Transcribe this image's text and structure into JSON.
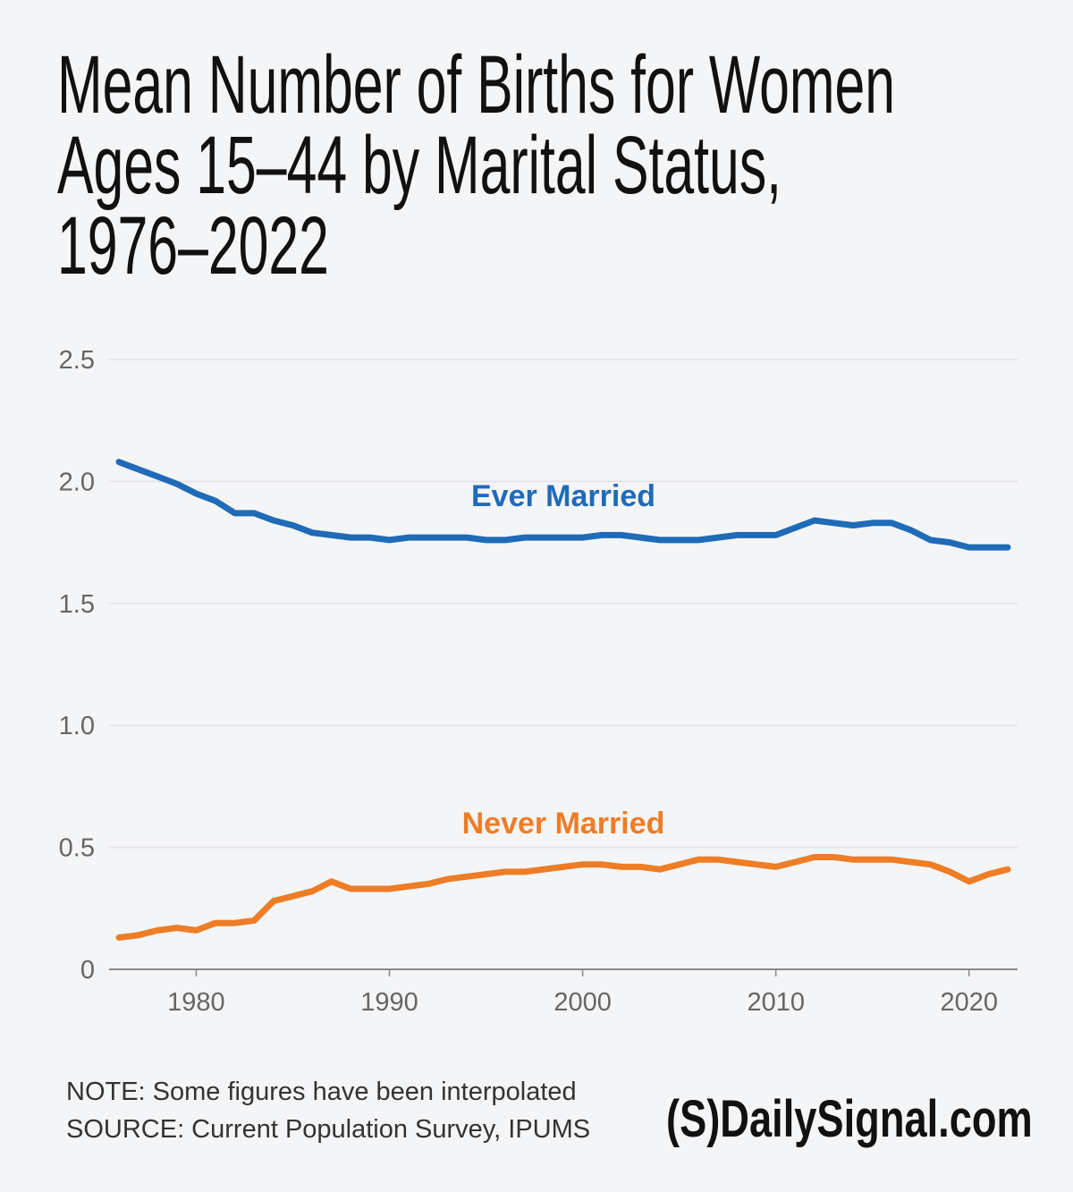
{
  "title_lines": [
    "Mean Number of Births for Women",
    "Ages 15–44 by Marital Status,",
    "1976–2022"
  ],
  "note": "NOTE: Some figures have been interpolated",
  "source": "SOURCE: Current Population Survey, IPUMS",
  "logo": "(S)DailySignal.com",
  "chart_data": {
    "type": "line",
    "title": "Mean Number of Births for Women Ages 15–44 by Marital Status, 1976–2022",
    "xlim": [
      1976,
      2022
    ],
    "ylim": [
      0,
      2.5
    ],
    "grid": true,
    "x_ticks": [
      "1980",
      "1990",
      "2000",
      "2010",
      "2020"
    ],
    "y_ticks": [
      "0",
      "0.5",
      "1.0",
      "1.5",
      "2.0",
      "2.5"
    ],
    "x": [
      1976,
      1977,
      1978,
      1979,
      1980,
      1981,
      1982,
      1983,
      1984,
      1985,
      1986,
      1987,
      1988,
      1989,
      1990,
      1991,
      1992,
      1993,
      1994,
      1995,
      1996,
      1997,
      1998,
      1999,
      2000,
      2001,
      2002,
      2003,
      2004,
      2005,
      2006,
      2007,
      2008,
      2009,
      2010,
      2011,
      2012,
      2013,
      2014,
      2015,
      2016,
      2017,
      2018,
      2019,
      2020,
      2021,
      2022
    ],
    "series": [
      {
        "name": "Ever Married",
        "color": "#1f6bb8",
        "values": [
          2.08,
          2.05,
          2.02,
          1.99,
          1.95,
          1.92,
          1.87,
          1.87,
          1.84,
          1.82,
          1.79,
          1.78,
          1.77,
          1.77,
          1.76,
          1.77,
          1.77,
          1.77,
          1.77,
          1.76,
          1.76,
          1.77,
          1.77,
          1.77,
          1.77,
          1.78,
          1.78,
          1.77,
          1.76,
          1.76,
          1.76,
          1.77,
          1.78,
          1.78,
          1.78,
          1.81,
          1.84,
          1.83,
          1.82,
          1.83,
          1.83,
          1.8,
          1.76,
          1.75,
          1.73,
          1.73,
          1.73
        ]
      },
      {
        "name": "Never Married",
        "color": "#ee7d26",
        "values": [
          0.13,
          0.14,
          0.16,
          0.17,
          0.16,
          0.19,
          0.19,
          0.2,
          0.28,
          0.3,
          0.32,
          0.36,
          0.33,
          0.33,
          0.33,
          0.34,
          0.35,
          0.37,
          0.38,
          0.39,
          0.4,
          0.4,
          0.41,
          0.42,
          0.43,
          0.43,
          0.42,
          0.42,
          0.41,
          0.43,
          0.45,
          0.45,
          0.44,
          0.43,
          0.42,
          0.44,
          0.46,
          0.46,
          0.45,
          0.45,
          0.45,
          0.44,
          0.43,
          0.4,
          0.36,
          0.39,
          0.41
        ]
      }
    ]
  }
}
